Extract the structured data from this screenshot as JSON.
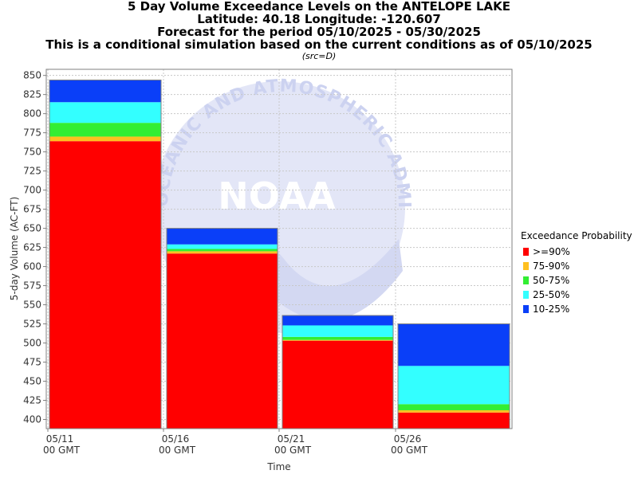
{
  "title_lines": [
    "5 Day Volume Exceedance Levels on the ANTELOPE LAKE",
    "Latitude: 40.18 Longitude: -120.607",
    "Forecast for the period 05/10/2025 - 05/30/2025",
    "This is a conditional simulation based on the current conditions as of 05/10/2025"
  ],
  "source_note": "(src=D)",
  "watermark": {
    "text": "NOAA",
    "arc_text": "OCEANIC AND ATMOSPHERIC ADMINISTRATION"
  },
  "legend": {
    "title": "Exceedance Probability",
    "items": [
      {
        "label": ">=90%",
        "color": "#ff0000"
      },
      {
        "label": "75-90%",
        "color": "#ffc020"
      },
      {
        "label": "50-75%",
        "color": "#33ee33"
      },
      {
        "label": "25-50%",
        "color": "#33ffff"
      },
      {
        "label": "10-25%",
        "color": "#0a3ff8"
      }
    ]
  },
  "chart_data": {
    "type": "bar",
    "stacked": true,
    "xlabel": "Time",
    "ylabel": "5-day Volume (AC-FT)",
    "ylim": [
      388,
      858
    ],
    "yticks": [
      400,
      425,
      450,
      475,
      500,
      525,
      550,
      575,
      600,
      625,
      650,
      675,
      700,
      725,
      750,
      775,
      800,
      825,
      850
    ],
    "grid": true,
    "legend_position": "right",
    "x_tick_labels": [
      {
        "date": "05/11",
        "time": "00 GMT"
      },
      {
        "date": "05/16",
        "time": "00 GMT"
      },
      {
        "date": "05/21",
        "time": "00 GMT"
      },
      {
        "date": "05/26",
        "time": "00 GMT"
      }
    ],
    "bars": [
      {
        "period": "05/11 - 05/16",
        "levels": [
          764,
          770,
          788,
          815,
          844
        ]
      },
      {
        "period": "05/16 - 05/21",
        "levels": [
          617,
          620,
          623,
          629,
          650
        ]
      },
      {
        "period": "05/21 - 05/26",
        "levels": [
          503,
          504,
          508,
          523,
          536
        ]
      },
      {
        "period": "05/26 - 05/31",
        "levels": [
          409,
          412,
          420,
          470,
          525
        ]
      }
    ],
    "series_order": [
      ">=90%",
      "75-90%",
      "50-75%",
      "25-50%",
      "10-25%"
    ]
  }
}
